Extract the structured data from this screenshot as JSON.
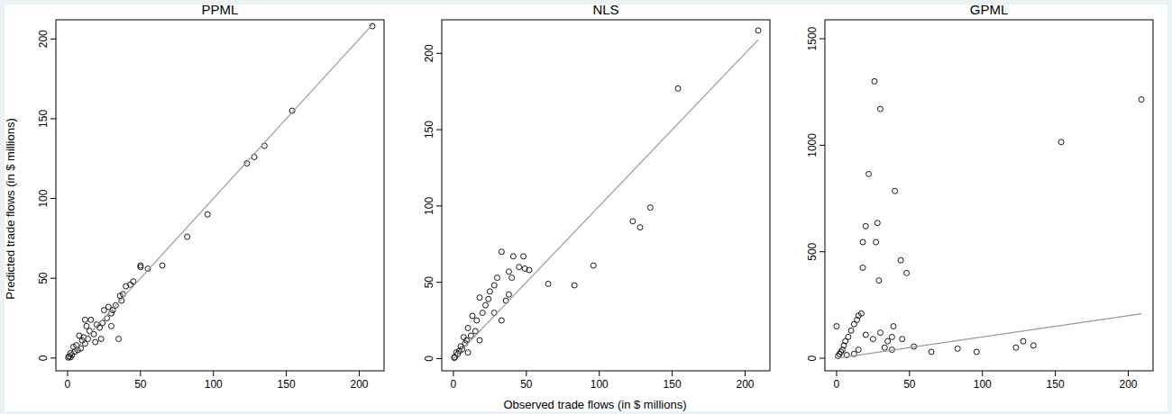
{
  "ylabel": "Predicted trade flows (in $ millions)",
  "xlabel": "Observed trade flows (in $ millions)",
  "chart_data": [
    {
      "type": "scatter",
      "title": "PPML",
      "xlim": [
        -8,
        217
      ],
      "ylim": [
        -8,
        212
      ],
      "xticks": [
        0,
        50,
        100,
        150,
        200
      ],
      "yticks": [
        0,
        50,
        100,
        150,
        200
      ],
      "series": [
        {
          "type": "scatter",
          "marker": "circle",
          "color": "#000000",
          "x": [
            209,
            154,
            135,
            128,
            123,
            96,
            82,
            65,
            55,
            50,
            50,
            45,
            43,
            40,
            38,
            36,
            37,
            35,
            33,
            31,
            30,
            28,
            27,
            25,
            24,
            22,
            20,
            19,
            18,
            16,
            15,
            14,
            13,
            12,
            11,
            10,
            9,
            8,
            7,
            6,
            5,
            4,
            3,
            2,
            1,
            0.5,
            2,
            12,
            23,
            30
          ],
          "values": [
            208,
            155,
            133,
            126,
            122,
            90,
            76,
            58,
            56,
            58,
            57,
            48,
            46,
            45,
            40,
            39,
            36,
            12,
            33,
            30,
            28,
            32,
            25,
            30,
            22,
            19,
            21,
            10,
            15,
            24,
            17,
            12,
            20,
            9,
            13,
            11,
            6,
            14,
            5,
            8,
            4,
            7,
            2,
            3,
            1,
            0.3,
            0.5,
            24,
            12,
            20
          ]
        },
        {
          "type": "line",
          "line_style": "solid",
          "color": "#9a9a9a",
          "x": [
            0,
            209
          ],
          "values": [
            0,
            209
          ]
        }
      ]
    },
    {
      "type": "scatter",
      "title": "NLS",
      "xlim": [
        -8,
        217
      ],
      "ylim": [
        -8,
        222
      ],
      "xticks": [
        0,
        50,
        100,
        150,
        200
      ],
      "yticks": [
        0,
        50,
        100,
        150,
        200
      ],
      "series": [
        {
          "type": "scatter",
          "marker": "circle",
          "color": "#000000",
          "x": [
            209,
            154,
            135,
            128,
            123,
            96,
            83,
            65,
            52,
            48,
            49,
            45,
            40,
            41,
            33,
            38,
            36,
            30,
            28,
            25,
            24,
            22,
            20,
            18,
            16,
            15,
            13,
            12,
            10,
            9,
            8,
            7,
            6,
            5,
            4,
            3,
            2,
            1,
            0.5,
            28,
            33,
            38,
            18,
            10
          ],
          "values": [
            215,
            177,
            99,
            86,
            90,
            61,
            48,
            49,
            58,
            67,
            59,
            60,
            53,
            67,
            70,
            42,
            38,
            53,
            48,
            44,
            39,
            35,
            30,
            40,
            25,
            18,
            28,
            15,
            20,
            12,
            10,
            14,
            6,
            8,
            5,
            3,
            4,
            1,
            0.5,
            30,
            25,
            57,
            12,
            4
          ]
        },
        {
          "type": "line",
          "line_style": "solid",
          "color": "#9a9a9a",
          "x": [
            0,
            209
          ],
          "values": [
            0,
            209
          ]
        }
      ]
    },
    {
      "type": "scatter",
      "title": "GPML",
      "xlim": [
        -8,
        217
      ],
      "ylim": [
        -59,
        1589
      ],
      "xticks": [
        0,
        50,
        100,
        150,
        200
      ],
      "yticks": [
        0,
        500,
        1000,
        1500
      ],
      "series": [
        {
          "type": "scatter",
          "marker": "circle",
          "color": "#000000",
          "x": [
            209,
            154,
            135,
            128,
            123,
            96,
            83,
            65,
            53,
            48,
            44,
            40,
            39,
            38,
            30,
            26,
            28,
            27,
            29,
            22,
            20,
            18,
            18,
            17,
            15,
            14,
            12,
            10,
            0,
            8,
            6,
            5,
            4,
            3,
            2,
            1,
            20,
            25,
            33,
            38,
            12,
            7,
            15,
            30,
            45,
            35
          ],
          "values": [
            1215,
            1015,
            60,
            80,
            50,
            30,
            45,
            30,
            55,
            400,
            460,
            785,
            150,
            100,
            1170,
            1300,
            635,
            545,
            365,
            865,
            620,
            545,
            425,
            210,
            200,
            180,
            160,
            130,
            150,
            100,
            80,
            60,
            40,
            30,
            20,
            10,
            110,
            90,
            50,
            40,
            20,
            15,
            40,
            120,
            90,
            80
          ]
        },
        {
          "type": "line",
          "line_style": "solid",
          "color": "#9a9a9a",
          "x": [
            0,
            209
          ],
          "values": [
            0,
            209
          ]
        }
      ]
    }
  ]
}
